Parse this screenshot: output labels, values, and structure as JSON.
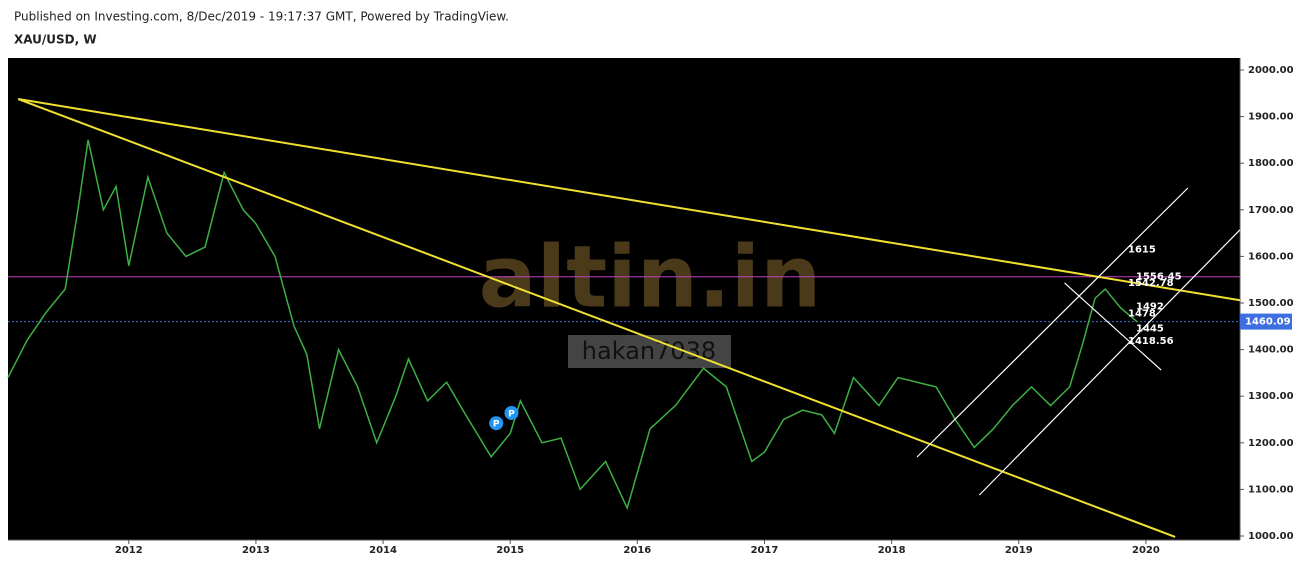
{
  "header": {
    "published": "Published on Investing.com, 8/Dec/2019 - 19:17:37 GMT, Powered by TradingView.",
    "symbol": "XAU/USD, W"
  },
  "chart_data": {
    "type": "line",
    "x": [
      2011.05,
      2011.2,
      2011.35,
      2011.5,
      2011.6,
      2011.68,
      2011.8,
      2011.9,
      2012.0,
      2012.15,
      2012.3,
      2012.45,
      2012.6,
      2012.75,
      2012.9,
      2013.0,
      2013.15,
      2013.3,
      2013.4,
      2013.5,
      2013.65,
      2013.8,
      2013.95,
      2014.1,
      2014.2,
      2014.35,
      2014.5,
      2014.65,
      2014.85,
      2015.0,
      2015.08,
      2015.25,
      2015.4,
      2015.55,
      2015.75,
      2015.92,
      2016.1,
      2016.3,
      2016.52,
      2016.7,
      2016.9,
      2017.0,
      2017.15,
      2017.3,
      2017.45,
      2017.55,
      2017.7,
      2017.9,
      2018.05,
      2018.2,
      2018.35,
      2018.5,
      2018.65,
      2018.8,
      2018.95,
      2019.1,
      2019.25,
      2019.4,
      2019.5,
      2019.6,
      2019.68,
      2019.8,
      2019.93
    ],
    "series": [
      {
        "name": "XAU/USD",
        "color": "#3cb043",
        "values": [
          1340,
          1420,
          1480,
          1530,
          1700,
          1850,
          1700,
          1750,
          1580,
          1770,
          1650,
          1600,
          1620,
          1780,
          1700,
          1670,
          1600,
          1450,
          1390,
          1230,
          1400,
          1320,
          1200,
          1300,
          1380,
          1290,
          1330,
          1260,
          1170,
          1220,
          1290,
          1200,
          1210,
          1100,
          1160,
          1060,
          1230,
          1280,
          1360,
          1320,
          1160,
          1180,
          1250,
          1270,
          1260,
          1220,
          1340,
          1280,
          1340,
          1330,
          1320,
          1250,
          1190,
          1230,
          1280,
          1320,
          1280,
          1320,
          1410,
          1510,
          1530,
          1490,
          1460
        ]
      }
    ],
    "xlim": [
      2011.05,
      2020.74
    ],
    "ylim": [
      991.4,
      2025.8
    ],
    "xticks": [
      2012,
      2013,
      2014,
      2015,
      2016,
      2017,
      2018,
      2019,
      2020
    ],
    "yticks": [
      {
        "value": 1000,
        "label": "1000.00"
      },
      {
        "value": 1100,
        "label": "1100.00"
      },
      {
        "value": 1200,
        "label": "1200.00"
      },
      {
        "value": 1300,
        "label": "1300.00"
      },
      {
        "value": 1400,
        "label": "1400.00"
      },
      {
        "value": 1500,
        "label": "1500.00"
      },
      {
        "value": 1600,
        "label": "1600.00"
      },
      {
        "value": 1700,
        "label": "1700.00"
      },
      {
        "value": 1800,
        "label": "1800.00"
      },
      {
        "value": 1900,
        "label": "1900.00"
      },
      {
        "value": 2000,
        "label": "2000.00"
      }
    ],
    "last_price": 1460.09,
    "last_price_color": "#3d6fe0",
    "hlines": [
      {
        "value": 1556.45,
        "color": "#c040c0"
      }
    ],
    "trendlines": [
      {
        "color": "#f0e030",
        "x": [
          2011.13,
          2020.74
        ],
        "y": [
          1937.8,
          1506
        ]
      },
      {
        "color": "#f0e030",
        "x": [
          2011.13,
          2020.23
        ],
        "y": [
          1937.8,
          998
        ]
      },
      {
        "color": "#ffffff",
        "x": [
          2018.2,
          2020.33
        ],
        "y": [
          1169.5,
          1746.8
        ]
      },
      {
        "color": "#ffffff",
        "x": [
          2018.69,
          2020.74
        ],
        "y": [
          1088,
          1657
        ]
      },
      {
        "color": "#ffffff",
        "x": [
          2019.36,
          2020.12
        ],
        "y": [
          1543,
          1356
        ]
      }
    ],
    "annotations": [
      1615,
      1556.45,
      1542.78,
      1492,
      1478,
      1445,
      1418.56
    ],
    "markers": [
      {
        "label": "P",
        "x": 2014.89,
        "y": 1242
      },
      {
        "label": "P",
        "x": 2015.01,
        "y": 1264
      }
    ],
    "watermark": {
      "brand": "altin.in",
      "user": "hakan7038"
    }
  }
}
